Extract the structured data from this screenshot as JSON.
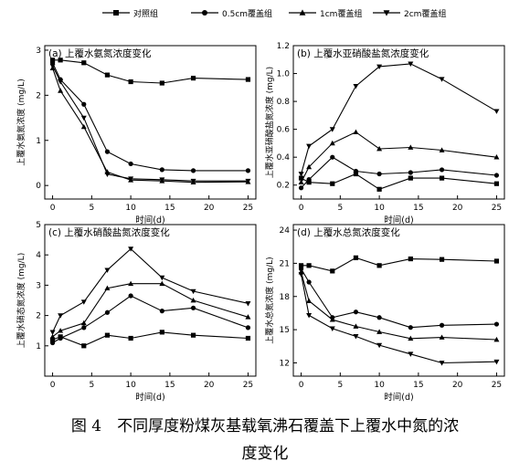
{
  "legend": {
    "entries": [
      "对照组",
      "0.5cm覆盖组",
      "1cm覆盖组",
      "2cm覆盖组"
    ],
    "markers": [
      "square",
      "circle",
      "triangle-up",
      "triangle-down"
    ]
  },
  "caption": {
    "line1": "图 4　不同厚度粉煤灰基载氧沸石覆盖下上覆水中氮的浓",
    "line2": "度变化"
  },
  "chart_data": [
    {
      "type": "line",
      "title": "(a) 上覆水氨氮浓度变化",
      "xlabel": "时间(d)",
      "ylabel": "上覆水氨氮浓度 (mg/L)",
      "xlim": [
        -1,
        26
      ],
      "ylim": [
        -0.3,
        3.1
      ],
      "xticks": [
        0,
        5,
        10,
        15,
        20,
        25
      ],
      "yticks": [
        0,
        1,
        2,
        3
      ],
      "x": [
        0,
        1,
        4,
        7,
        10,
        14,
        18,
        25
      ],
      "series": [
        {
          "name": "对照组",
          "marker": "square",
          "values": [
            2.78,
            2.78,
            2.72,
            2.45,
            2.3,
            2.27,
            2.38,
            2.35
          ]
        },
        {
          "name": "0.5cm覆盖组",
          "marker": "circle",
          "values": [
            2.72,
            2.35,
            1.8,
            0.75,
            0.48,
            0.35,
            0.33,
            0.33
          ]
        },
        {
          "name": "1cm覆盖组",
          "marker": "triangle-up",
          "values": [
            2.6,
            2.1,
            1.3,
            0.3,
            0.12,
            0.1,
            0.07,
            0.08
          ]
        },
        {
          "name": "2cm覆盖组",
          "marker": "triangle-down",
          "values": [
            2.65,
            2.3,
            1.5,
            0.25,
            0.15,
            0.13,
            0.1,
            0.1
          ]
        }
      ]
    },
    {
      "type": "line",
      "title": "(b) 上覆水亚硝酸盐氮浓度变化",
      "xlabel": "时间(d)",
      "ylabel": "上覆水亚硝酸盐氮浓度 (mg/L)",
      "xlim": [
        -1,
        26
      ],
      "ylim": [
        0.1,
        1.2
      ],
      "xticks": [
        0,
        5,
        10,
        15,
        20,
        25
      ],
      "yticks": [
        0.2,
        0.4,
        0.6,
        0.8,
        1.0,
        1.2
      ],
      "ytick_labels": [
        "0.2",
        "0.4",
        "0.6",
        "0.8",
        "1.0",
        "1.2"
      ],
      "x": [
        0,
        1,
        4,
        7,
        10,
        14,
        18,
        25
      ],
      "series": [
        {
          "name": "对照组",
          "marker": "square",
          "values": [
            0.25,
            0.22,
            0.21,
            0.28,
            0.17,
            0.25,
            0.25,
            0.21
          ]
        },
        {
          "name": "0.5cm覆盖组",
          "marker": "circle",
          "values": [
            0.18,
            0.24,
            0.4,
            0.3,
            0.28,
            0.29,
            0.31,
            0.27
          ]
        },
        {
          "name": "1cm覆盖组",
          "marker": "triangle-up",
          "values": [
            0.22,
            0.33,
            0.5,
            0.58,
            0.46,
            0.47,
            0.45,
            0.4
          ]
        },
        {
          "name": "2cm覆盖组",
          "marker": "triangle-down",
          "values": [
            0.28,
            0.48,
            0.6,
            0.91,
            1.05,
            1.07,
            0.96,
            0.73
          ]
        }
      ]
    },
    {
      "type": "line",
      "title": "(c) 上覆水硝酸盐氮浓度变化",
      "xlabel": "时间(d)",
      "ylabel": "上覆水硝态氮浓度 (mg/L)",
      "xlim": [
        -1,
        26
      ],
      "ylim": [
        0,
        5
      ],
      "xticks": [
        0,
        5,
        10,
        15,
        20,
        25
      ],
      "yticks": [
        1,
        2,
        3,
        4,
        5
      ],
      "x": [
        0,
        1,
        4,
        7,
        10,
        14,
        18,
        25
      ],
      "series": [
        {
          "name": "对照组",
          "marker": "square",
          "values": [
            1.2,
            1.3,
            1.0,
            1.35,
            1.25,
            1.45,
            1.35,
            1.25
          ]
        },
        {
          "name": "0.5cm覆盖组",
          "marker": "circle",
          "values": [
            1.1,
            1.25,
            1.6,
            2.1,
            2.65,
            2.15,
            2.25,
            1.6
          ]
        },
        {
          "name": "1cm覆盖组",
          "marker": "triangle-up",
          "values": [
            1.3,
            1.5,
            1.75,
            2.9,
            3.05,
            3.05,
            2.5,
            1.95
          ]
        },
        {
          "name": "2cm覆盖组",
          "marker": "triangle-down",
          "values": [
            1.45,
            2.0,
            2.45,
            3.5,
            4.2,
            3.25,
            2.8,
            2.4
          ]
        }
      ]
    },
    {
      "type": "line",
      "title": "(d) 上覆水总氮浓度变化",
      "xlabel": "时间(d)",
      "ylabel": "上覆水总氮浓度 (mg/L)",
      "xlim": [
        -1,
        26
      ],
      "ylim": [
        10.8,
        24.5
      ],
      "xticks": [
        0,
        5,
        10,
        15,
        20,
        25
      ],
      "yticks": [
        12,
        15,
        18,
        21,
        24
      ],
      "x": [
        0,
        1,
        4,
        7,
        10,
        14,
        18,
        25
      ],
      "series": [
        {
          "name": "对照组",
          "marker": "square",
          "values": [
            20.8,
            20.8,
            20.3,
            21.5,
            20.8,
            21.4,
            21.35,
            21.2
          ]
        },
        {
          "name": "0.5cm覆盖组",
          "marker": "circle",
          "values": [
            20.5,
            19.3,
            16.1,
            16.6,
            16.1,
            15.2,
            15.4,
            15.5
          ]
        },
        {
          "name": "1cm覆盖组",
          "marker": "triangle-up",
          "values": [
            20.2,
            17.6,
            15.9,
            15.3,
            14.8,
            14.2,
            14.3,
            14.1
          ]
        },
        {
          "name": "2cm覆盖组",
          "marker": "triangle-down",
          "values": [
            20.0,
            16.3,
            15.1,
            14.4,
            13.6,
            12.8,
            12.0,
            12.1
          ]
        }
      ]
    }
  ]
}
